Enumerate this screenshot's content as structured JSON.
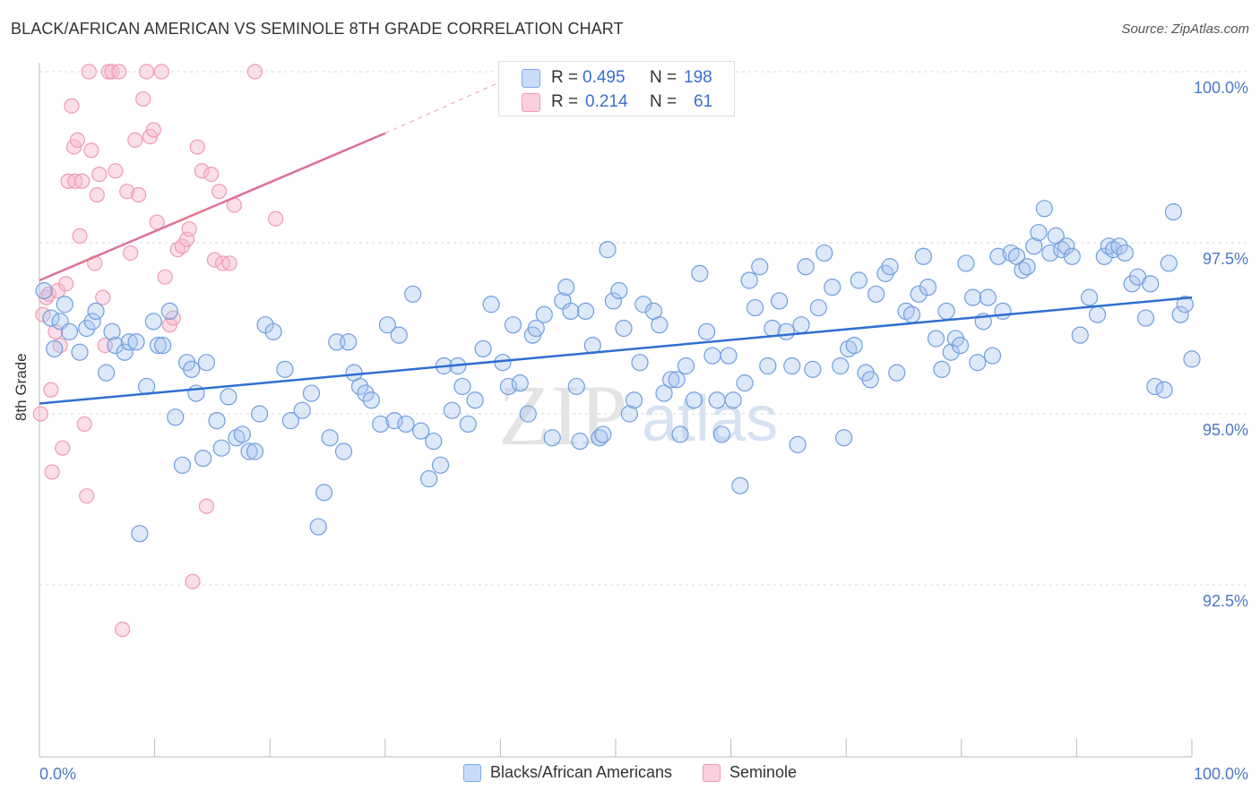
{
  "title": "BLACK/AFRICAN AMERICAN VS SEMINOLE 8TH GRADE CORRELATION CHART",
  "source": "Source: ZipAtlas.com",
  "watermark": {
    "zip": "ZIP",
    "atlas": "atlas"
  },
  "stats_legend": [
    {
      "r_label": "R =",
      "r_value": "0.495",
      "n_label": "N =",
      "n_value": "198",
      "color": "#7eaaf0"
    },
    {
      "r_label": "R =",
      "r_value": "0.214",
      "n_label": "N =",
      "n_value": "61",
      "color": "#f09ab2"
    }
  ],
  "chart_data": {
    "type": "scatter",
    "xlabel": "",
    "ylabel": "8th Grade",
    "xlim": [
      0,
      100
    ],
    "ylim": [
      90.0,
      100.25
    ],
    "x_tick_labels": [
      "0.0%",
      "100.0%"
    ],
    "y_ticks": [
      92.5,
      95.0,
      97.5,
      100.0
    ],
    "y_tick_labels": [
      "92.5%",
      "95.0%",
      "97.5%",
      "100.0%"
    ],
    "grid": true,
    "legend_position": "bottom",
    "series": [
      {
        "name": "Blacks/African Americans",
        "color": "#7eaaf0",
        "line_color": "#2f6fd0",
        "trend": {
          "x": [
            0,
            100
          ],
          "y": [
            95.15,
            96.7
          ]
        },
        "points": [
          [
            0.4,
            96.8
          ],
          [
            1.0,
            96.4
          ],
          [
            1.3,
            95.95
          ],
          [
            1.8,
            96.35
          ],
          [
            2.2,
            96.6
          ],
          [
            2.6,
            96.2
          ],
          [
            3.5,
            95.9
          ],
          [
            4.1,
            96.25
          ],
          [
            4.6,
            96.35
          ],
          [
            4.9,
            96.5
          ],
          [
            5.8,
            95.6
          ],
          [
            6.3,
            96.2
          ],
          [
            6.6,
            96.0
          ],
          [
            7.4,
            95.9
          ],
          [
            7.8,
            96.05
          ],
          [
            8.4,
            96.05
          ],
          [
            8.7,
            93.25
          ],
          [
            9.3,
            95.4
          ],
          [
            9.9,
            96.35
          ],
          [
            10.3,
            96.0
          ],
          [
            10.7,
            96.0
          ],
          [
            11.3,
            96.5
          ],
          [
            11.8,
            94.95
          ],
          [
            12.4,
            94.25
          ],
          [
            12.8,
            95.75
          ],
          [
            13.2,
            95.65
          ],
          [
            13.6,
            95.3
          ],
          [
            14.2,
            94.35
          ],
          [
            14.5,
            95.75
          ],
          [
            15.4,
            94.9
          ],
          [
            15.8,
            94.5
          ],
          [
            16.4,
            95.25
          ],
          [
            17.1,
            94.65
          ],
          [
            17.6,
            94.7
          ],
          [
            18.2,
            94.45
          ],
          [
            18.7,
            94.45
          ],
          [
            19.1,
            95.0
          ],
          [
            19.6,
            96.3
          ],
          [
            20.3,
            96.2
          ],
          [
            21.3,
            95.65
          ],
          [
            21.8,
            94.9
          ],
          [
            22.8,
            95.05
          ],
          [
            23.6,
            95.3
          ],
          [
            24.2,
            93.35
          ],
          [
            24.7,
            93.85
          ],
          [
            25.2,
            94.65
          ],
          [
            25.8,
            96.05
          ],
          [
            26.4,
            94.45
          ],
          [
            26.8,
            96.05
          ],
          [
            27.3,
            95.6
          ],
          [
            27.8,
            95.4
          ],
          [
            28.3,
            95.3
          ],
          [
            28.8,
            95.2
          ],
          [
            29.6,
            94.85
          ],
          [
            30.2,
            96.3
          ],
          [
            30.8,
            94.9
          ],
          [
            31.2,
            96.15
          ],
          [
            31.8,
            94.85
          ],
          [
            32.4,
            96.75
          ],
          [
            33.1,
            94.75
          ],
          [
            33.8,
            94.05
          ],
          [
            34.2,
            94.6
          ],
          [
            34.8,
            94.25
          ],
          [
            35.1,
            95.7
          ],
          [
            35.8,
            95.05
          ],
          [
            36.3,
            95.7
          ],
          [
            36.7,
            95.4
          ],
          [
            37.2,
            94.85
          ],
          [
            37.8,
            95.2
          ],
          [
            38.5,
            95.95
          ],
          [
            39.2,
            96.6
          ],
          [
            40.2,
            95.75
          ],
          [
            40.7,
            95.4
          ],
          [
            41.1,
            96.3
          ],
          [
            41.7,
            95.45
          ],
          [
            42.4,
            95.0
          ],
          [
            42.8,
            96.15
          ],
          [
            43.1,
            96.25
          ],
          [
            43.8,
            96.45
          ],
          [
            44.5,
            94.65
          ],
          [
            45.4,
            96.65
          ],
          [
            45.7,
            96.85
          ],
          [
            46.1,
            96.5
          ],
          [
            46.6,
            95.4
          ],
          [
            46.9,
            94.6
          ],
          [
            47.4,
            96.5
          ],
          [
            48.0,
            96.0
          ],
          [
            48.6,
            94.65
          ],
          [
            48.9,
            94.7
          ],
          [
            49.3,
            97.4
          ],
          [
            49.8,
            96.65
          ],
          [
            50.3,
            96.8
          ],
          [
            50.7,
            96.25
          ],
          [
            51.2,
            95.0
          ],
          [
            51.6,
            95.2
          ],
          [
            52.1,
            95.75
          ],
          [
            52.4,
            96.6
          ],
          [
            53.3,
            96.5
          ],
          [
            53.8,
            96.3
          ],
          [
            54.2,
            95.3
          ],
          [
            54.8,
            95.5
          ],
          [
            55.3,
            95.5
          ],
          [
            55.6,
            94.7
          ],
          [
            56.1,
            95.7
          ],
          [
            56.8,
            95.2
          ],
          [
            57.3,
            97.05
          ],
          [
            57.9,
            96.2
          ],
          [
            58.4,
            95.85
          ],
          [
            58.8,
            95.2
          ],
          [
            59.2,
            94.7
          ],
          [
            59.8,
            95.85
          ],
          [
            60.2,
            95.2
          ],
          [
            60.8,
            93.95
          ],
          [
            61.2,
            95.45
          ],
          [
            61.6,
            96.95
          ],
          [
            62.1,
            96.55
          ],
          [
            62.5,
            97.15
          ],
          [
            63.2,
            95.7
          ],
          [
            63.6,
            96.25
          ],
          [
            64.2,
            96.65
          ],
          [
            64.8,
            96.2
          ],
          [
            65.3,
            95.7
          ],
          [
            65.8,
            94.55
          ],
          [
            66.1,
            96.3
          ],
          [
            66.5,
            97.15
          ],
          [
            67.1,
            95.65
          ],
          [
            67.6,
            96.55
          ],
          [
            68.1,
            97.35
          ],
          [
            68.8,
            96.85
          ],
          [
            69.5,
            95.7
          ],
          [
            69.8,
            94.65
          ],
          [
            70.2,
            95.95
          ],
          [
            70.7,
            96.0
          ],
          [
            71.1,
            96.95
          ],
          [
            71.7,
            95.6
          ],
          [
            72.1,
            95.5
          ],
          [
            72.6,
            96.75
          ],
          [
            73.4,
            97.05
          ],
          [
            73.8,
            97.15
          ],
          [
            74.4,
            95.6
          ],
          [
            75.2,
            96.5
          ],
          [
            75.7,
            96.45
          ],
          [
            76.3,
            96.75
          ],
          [
            76.7,
            97.3
          ],
          [
            77.1,
            96.85
          ],
          [
            77.8,
            96.1
          ],
          [
            78.3,
            95.65
          ],
          [
            78.7,
            96.5
          ],
          [
            79.1,
            95.9
          ],
          [
            79.5,
            96.1
          ],
          [
            79.9,
            96.0
          ],
          [
            80.4,
            97.2
          ],
          [
            81.0,
            96.7
          ],
          [
            81.4,
            95.75
          ],
          [
            81.9,
            96.35
          ],
          [
            82.3,
            96.7
          ],
          [
            82.7,
            95.85
          ],
          [
            83.2,
            97.3
          ],
          [
            83.6,
            96.5
          ],
          [
            84.3,
            97.35
          ],
          [
            84.8,
            97.3
          ],
          [
            85.3,
            97.1
          ],
          [
            85.7,
            97.15
          ],
          [
            86.3,
            97.45
          ],
          [
            86.7,
            97.65
          ],
          [
            87.2,
            98.0
          ],
          [
            87.7,
            97.35
          ],
          [
            88.2,
            97.6
          ],
          [
            88.7,
            97.4
          ],
          [
            89.1,
            97.45
          ],
          [
            89.6,
            97.3
          ],
          [
            90.3,
            96.15
          ],
          [
            91.1,
            96.7
          ],
          [
            91.8,
            96.45
          ],
          [
            92.4,
            97.3
          ],
          [
            92.8,
            97.45
          ],
          [
            93.2,
            97.4
          ],
          [
            93.7,
            97.45
          ],
          [
            94.2,
            97.35
          ],
          [
            94.8,
            96.9
          ],
          [
            95.3,
            97.0
          ],
          [
            96.0,
            96.4
          ],
          [
            96.4,
            96.9
          ],
          [
            96.8,
            95.4
          ],
          [
            97.6,
            95.35
          ],
          [
            98.0,
            97.2
          ],
          [
            98.4,
            97.95
          ],
          [
            99.0,
            96.45
          ],
          [
            99.4,
            96.6
          ],
          [
            100.0,
            95.8
          ]
        ]
      },
      {
        "name": "Seminole",
        "color": "#f09ab2",
        "line_color": "#e0708f",
        "trend": {
          "x": [
            0,
            30
          ],
          "y": [
            96.95,
            99.1
          ]
        },
        "trend_extension": {
          "x": [
            30,
            42
          ],
          "y": [
            99.1,
            100.0
          ]
        },
        "points": [
          [
            0.1,
            95.0
          ],
          [
            0.3,
            96.45
          ],
          [
            0.6,
            96.7
          ],
          [
            0.8,
            96.75
          ],
          [
            1.0,
            95.35
          ],
          [
            1.1,
            94.15
          ],
          [
            1.4,
            96.2
          ],
          [
            1.6,
            96.8
          ],
          [
            1.8,
            96.0
          ],
          [
            2.0,
            94.5
          ],
          [
            2.3,
            96.9
          ],
          [
            2.5,
            98.4
          ],
          [
            2.8,
            99.5
          ],
          [
            3.0,
            98.9
          ],
          [
            3.1,
            98.4
          ],
          [
            3.3,
            99.0
          ],
          [
            3.5,
            97.6
          ],
          [
            3.7,
            98.4
          ],
          [
            3.9,
            94.85
          ],
          [
            4.1,
            93.8
          ],
          [
            4.3,
            100.0
          ],
          [
            4.5,
            98.85
          ],
          [
            4.8,
            97.2
          ],
          [
            5.0,
            98.2
          ],
          [
            5.2,
            98.5
          ],
          [
            5.5,
            96.7
          ],
          [
            5.7,
            96.0
          ],
          [
            6.0,
            100.0
          ],
          [
            6.3,
            100.0
          ],
          [
            6.6,
            98.55
          ],
          [
            6.9,
            100.0
          ],
          [
            7.2,
            91.85
          ],
          [
            7.6,
            98.25
          ],
          [
            7.9,
            97.35
          ],
          [
            8.3,
            99.0
          ],
          [
            8.6,
            98.2
          ],
          [
            9.0,
            99.6
          ],
          [
            9.3,
            100.0
          ],
          [
            9.6,
            99.05
          ],
          [
            9.9,
            99.15
          ],
          [
            10.2,
            97.8
          ],
          [
            10.6,
            100.0
          ],
          [
            10.9,
            97.0
          ],
          [
            11.3,
            96.3
          ],
          [
            11.6,
            96.4
          ],
          [
            12.0,
            97.4
          ],
          [
            12.4,
            97.45
          ],
          [
            12.8,
            97.55
          ],
          [
            13.0,
            97.7
          ],
          [
            13.3,
            92.55
          ],
          [
            13.7,
            98.9
          ],
          [
            14.1,
            98.55
          ],
          [
            14.5,
            93.65
          ],
          [
            14.9,
            98.5
          ],
          [
            15.2,
            97.25
          ],
          [
            15.6,
            98.25
          ],
          [
            15.9,
            97.2
          ],
          [
            16.5,
            97.2
          ],
          [
            16.9,
            98.05
          ],
          [
            18.7,
            100.0
          ],
          [
            20.5,
            97.85
          ]
        ]
      }
    ]
  }
}
